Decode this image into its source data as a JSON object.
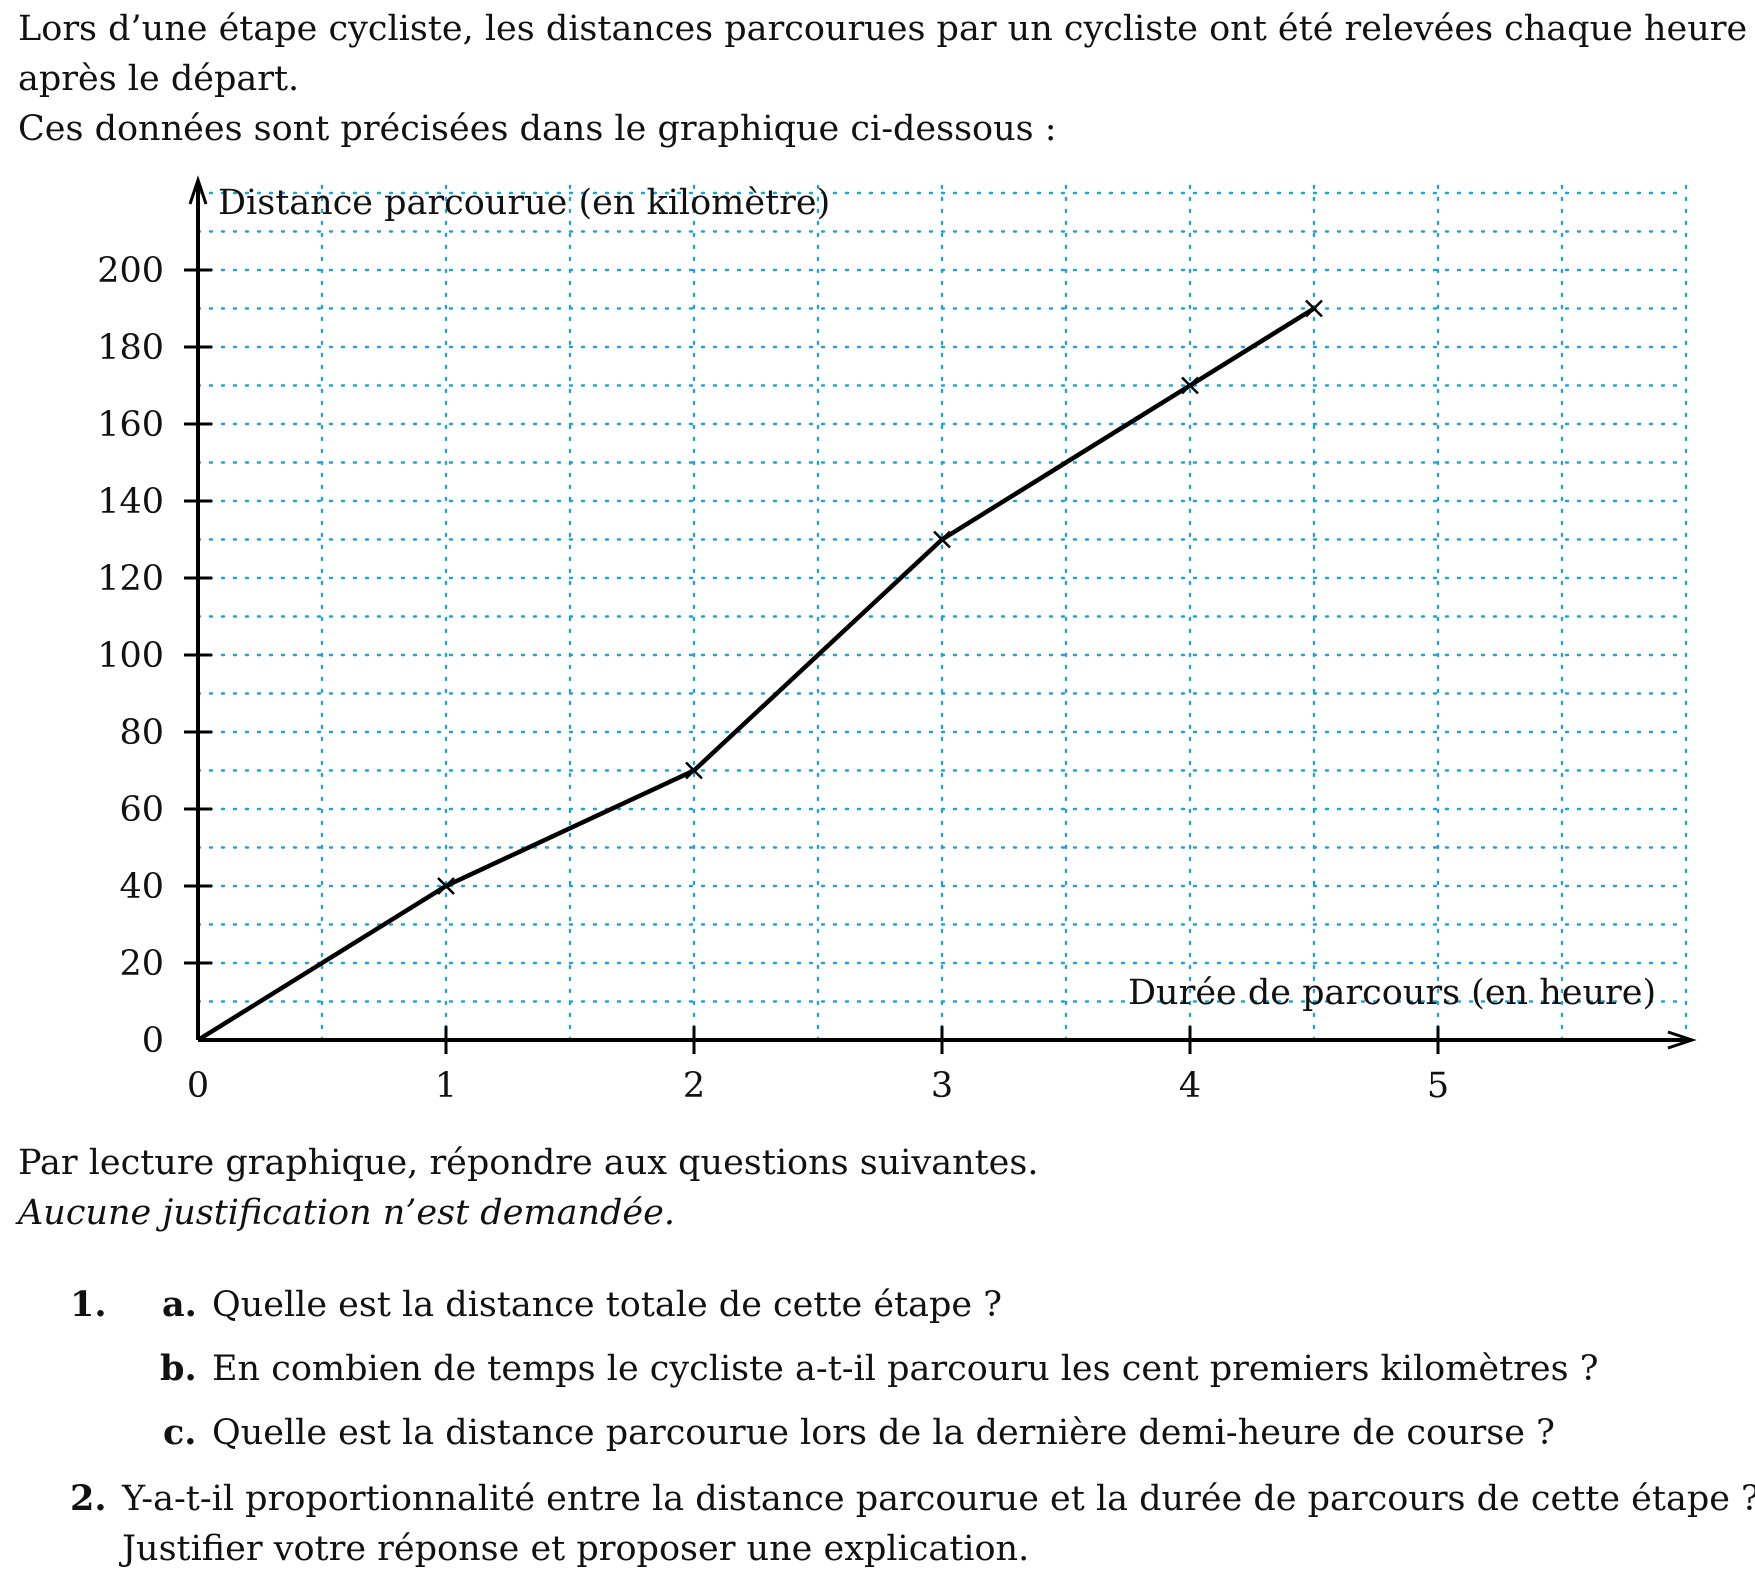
{
  "intro": {
    "line1": "Lors d’une étape cycliste, les distances parcourues par un cycliste ont été relevées chaque heure après le départ.",
    "line2": "Ces données sont précisées dans le graphique ci-dessous :"
  },
  "chart_data": {
    "type": "line",
    "ylabel": "Distance parcourue (en kilomètre)",
    "xlabel": "Durée de parcours (en heure)",
    "x": [
      0,
      1,
      2,
      3,
      4,
      4.5
    ],
    "y": [
      0,
      40,
      70,
      130,
      170,
      190
    ],
    "x_ticks": [
      "0",
      "1",
      "2",
      "3",
      "4",
      "5"
    ],
    "y_ticks": [
      "0",
      "20",
      "40",
      "60",
      "80",
      "100",
      "120",
      "140",
      "160",
      "180",
      "200"
    ],
    "xlim": [
      0,
      6
    ],
    "ylim": [
      0,
      220
    ],
    "grid": "dotted",
    "grid_color": "#1aa3d9",
    "line_color": "#000000",
    "marker": "x"
  },
  "after": {
    "line1": "Par lecture graphique, répondre aux questions suivantes.",
    "line2": "Aucune justification n’est demandée."
  },
  "questions": {
    "q1_num": "1.",
    "q1a_label": "a.",
    "q1a_text": "Quelle est la distance totale de cette étape ?",
    "q1b_label": "b.",
    "q1b_text": "En combien de temps le cycliste a-t-il parcouru les cent premiers kilomètres ?",
    "q1c_label": "c.",
    "q1c_text": "Quelle est la distance parcourue lors de la dernière demi-heure de course ?",
    "q2_num": "2.",
    "q2_line1": "Y-a-t-il proportionnalité entre la distance parcourue et la durée de parcours de cette étape ?",
    "q2_line2": "Justifier votre réponse et proposer une explication."
  }
}
